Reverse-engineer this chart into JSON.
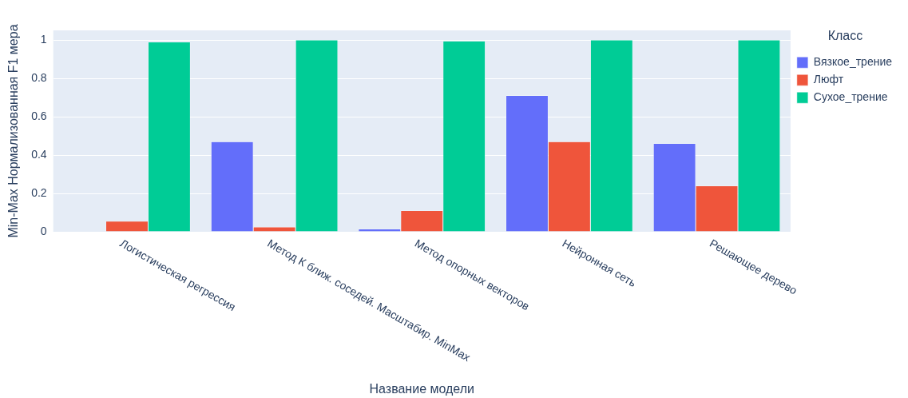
{
  "chart_data": {
    "type": "bar",
    "xlabel": "Название модели",
    "ylabel": "Min-Max Нормализованная F1 мера",
    "legend_title": "Класс",
    "categories": [
      "Логистическая регрессия",
      "Метод К ближ. соседей. Масштабир. MinMax",
      "Метод опорных векторов",
      "Нейронная сеть",
      "Решающее дерево"
    ],
    "series": [
      {
        "name": "Вязкое_трение",
        "color": "#636efa",
        "values": [
          0,
          0.47,
          0.015,
          0.71,
          0.46
        ]
      },
      {
        "name": "Люфт",
        "color": "#ef553b",
        "values": [
          0.055,
          0.025,
          0.11,
          0.47,
          0.24
        ]
      },
      {
        "name": "Сухое_трение",
        "color": "#00cc96",
        "values": [
          0.99,
          1,
          0.995,
          1,
          1
        ]
      }
    ],
    "ylim": [
      0,
      1.05
    ],
    "yticks": [
      0,
      0.2,
      0.4,
      0.6,
      0.8,
      1
    ],
    "grid": "y",
    "legend": "right"
  }
}
